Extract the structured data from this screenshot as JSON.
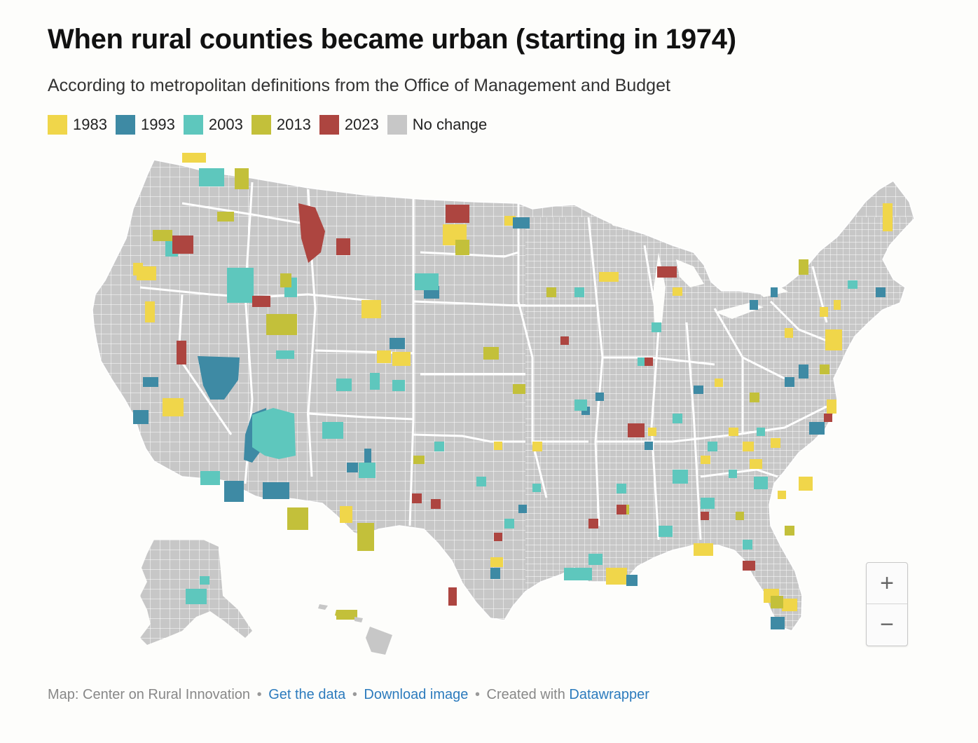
{
  "title": "When rural counties became urban (starting in 1974)",
  "subtitle": "According to metropolitan definitions from the Office of Management and Budget",
  "legend": [
    {
      "label": "1983",
      "color": "#f0d64a"
    },
    {
      "label": "1993",
      "color": "#3e8aa4"
    },
    {
      "label": "2003",
      "color": "#5ec7bd"
    },
    {
      "label": "2013",
      "color": "#c3c03a"
    },
    {
      "label": "2023",
      "color": "#ad4540"
    },
    {
      "label": "No change",
      "color": "#c7c7c7"
    }
  ],
  "zoom": {
    "in_label": "+",
    "out_label": "−"
  },
  "footer": {
    "credit": "Map: Center on Rural Innovation",
    "separator": "•",
    "get_data": "Get the data",
    "download": "Download image",
    "created_with": "Created with",
    "datawrapper": "Datawrapper"
  },
  "colors": {
    "no_change": "#c7c7c7",
    "border": "#ffffff",
    "background": "#fdfdfb"
  }
}
